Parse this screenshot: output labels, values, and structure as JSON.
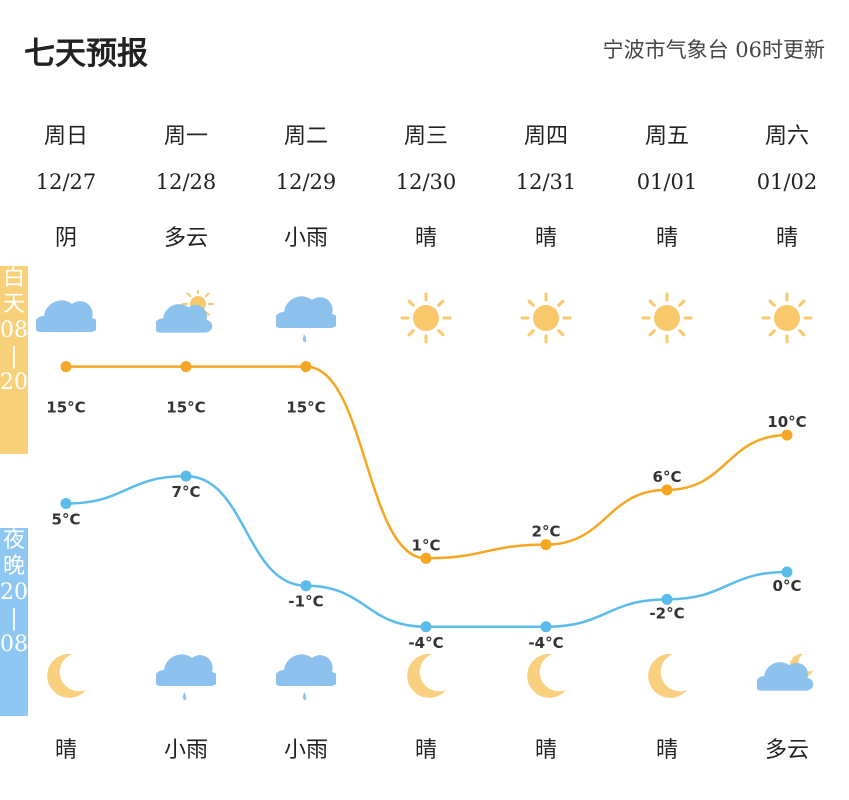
{
  "header": {
    "title": "七天预报",
    "source": "宁波市气象台 06时更新"
  },
  "side": {
    "day": [
      "白",
      "天",
      "08",
      "|",
      "20"
    ],
    "night": [
      "夜",
      "晚",
      "20",
      "|",
      "08"
    ]
  },
  "days": [
    {
      "weekday": "周日",
      "date": "12/27",
      "day_weather": "阴",
      "night_weather": "晴",
      "day_icon": "cloud-icon",
      "night_icon": "moon-icon"
    },
    {
      "weekday": "周一",
      "date": "12/28",
      "day_weather": "多云",
      "night_weather": "小雨",
      "day_icon": "partly-cloudy-icon",
      "night_icon": "rain-cloud-icon"
    },
    {
      "weekday": "周二",
      "date": "12/29",
      "day_weather": "小雨",
      "night_weather": "小雨",
      "day_icon": "rain-cloud-icon",
      "night_icon": "rain-cloud-icon"
    },
    {
      "weekday": "周三",
      "date": "12/30",
      "day_weather": "晴",
      "night_weather": "晴",
      "day_icon": "sun-icon",
      "night_icon": "moon-icon"
    },
    {
      "weekday": "周四",
      "date": "12/31",
      "day_weather": "晴",
      "night_weather": "晴",
      "day_icon": "sun-icon",
      "night_icon": "moon-icon"
    },
    {
      "weekday": "周五",
      "date": "01/01",
      "day_weather": "晴",
      "night_weather": "晴",
      "day_icon": "sun-icon",
      "night_icon": "moon-icon"
    },
    {
      "weekday": "周六",
      "date": "01/02",
      "day_weather": "晴",
      "night_weather": "多云",
      "day_icon": "sun-icon",
      "night_icon": "cloudy-night-icon"
    }
  ],
  "colors": {
    "day_line": "#f5a623",
    "night_line": "#5bbbea",
    "sun": "#f9c86a",
    "cloud": "#8ec2ee",
    "moon": "#f9cf80"
  },
  "chart_data": {
    "type": "line",
    "categories": [
      "12/27",
      "12/28",
      "12/29",
      "12/30",
      "12/31",
      "01/01",
      "01/02"
    ],
    "unit": "°C",
    "series": [
      {
        "name": "白天",
        "values": [
          15,
          15,
          15,
          1,
          2,
          6,
          10
        ],
        "labels": [
          "15°C",
          "15°C",
          "15°C",
          "1°C",
          "2°C",
          "6°C",
          "10°C"
        ]
      },
      {
        "name": "夜晚",
        "values": [
          5,
          7,
          -1,
          -4,
          -4,
          -2,
          0
        ],
        "labels": [
          "5°C",
          "7°C",
          "-1°C",
          "-4°C",
          "-4°C",
          "-2°C",
          "0°C"
        ]
      }
    ]
  }
}
